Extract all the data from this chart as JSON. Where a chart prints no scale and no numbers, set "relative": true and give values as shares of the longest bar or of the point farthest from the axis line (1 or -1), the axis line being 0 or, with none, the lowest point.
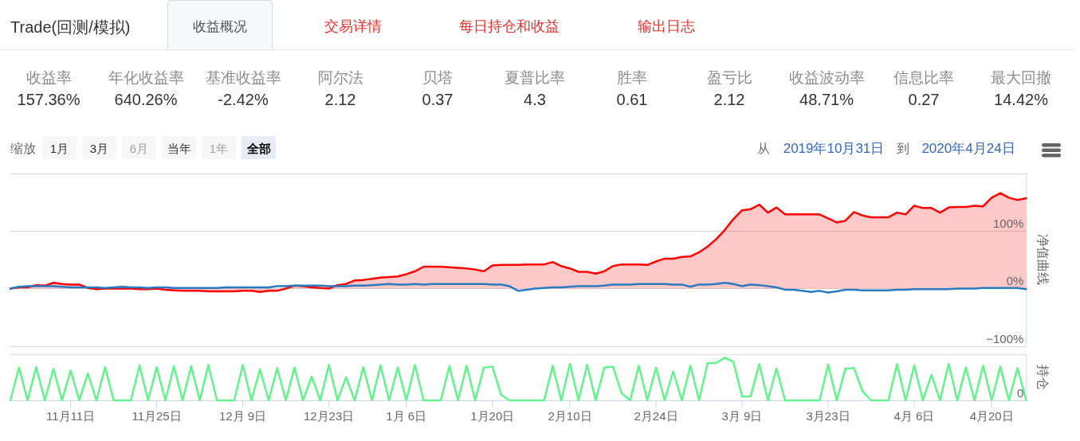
{
  "chart_data": [
    {
      "type": "other",
      "title": "Trade(回测/模拟)",
      "annotations": [
        "收益概况",
        "交易详情",
        "每日持仓和收益",
        "输出日志"
      ]
    },
    {
      "type": "other",
      "categories": [
        "收益率",
        "年化收益率",
        "基准收益率",
        "阿尔法",
        "贝塔",
        "夏普比率",
        "胜率",
        "盈亏比",
        "收益波动率",
        "信息比率",
        "最大回撤"
      ],
      "value_labels": [
        "157.36%",
        "640.26%",
        "-2.42%",
        "2.12",
        "0.37",
        "4.3",
        "0.61",
        "2.12",
        "48.71%",
        "0.27",
        "14.42%"
      ]
    },
    {
      "type": "other",
      "annotations": [
        "缩放",
        "1月",
        "3月",
        "6月",
        "当年",
        "1年",
        "全部",
        "从",
        "2019年10月31日",
        "到",
        "2020年4月24日"
      ]
    },
    {
      "type": "area",
      "categories": [
        null,
        null,
        null,
        null,
        null,
        null,
        null,
        null,
        null,
        null,
        null,
        null,
        null,
        null,
        null,
        null,
        null,
        null,
        null,
        null,
        null,
        null,
        null,
        null,
        null,
        null,
        null,
        null,
        null,
        null,
        null,
        null,
        null,
        null,
        null,
        null,
        null,
        null,
        null,
        null,
        null,
        null,
        null,
        null,
        null,
        null,
        null,
        null,
        null,
        null,
        null,
        null,
        null,
        null,
        null,
        null,
        null,
        null,
        null,
        null,
        null,
        null,
        null,
        null,
        null,
        null,
        null,
        null,
        null,
        null,
        null,
        null,
        null,
        null,
        null,
        null,
        null,
        null,
        null,
        null,
        null,
        null,
        null,
        null,
        null,
        null,
        null,
        null,
        null,
        null,
        null,
        null,
        null,
        null,
        null,
        null,
        null,
        null,
        null,
        null,
        null,
        null,
        null,
        null,
        null,
        null,
        null,
        null,
        null,
        null,
        null,
        null,
        null,
        null,
        null,
        null,
        null,
        null,
        null
      ],
      "series": [
        {
          "color": "#ff0000",
          "values": [
            0,
            2,
            2,
            6,
            5,
            10,
            8,
            7,
            7,
            1,
            -1,
            0,
            0,
            0,
            0,
            -1,
            -1,
            0,
            -2,
            -3,
            -4,
            -4,
            -4,
            -5,
            -5,
            -5,
            -5,
            -4,
            -4,
            -6,
            -4,
            -4,
            0,
            5,
            4,
            2,
            1,
            0,
            6,
            8,
            14,
            15,
            17,
            19,
            20,
            21,
            25,
            30,
            38,
            38,
            38,
            37,
            36,
            35,
            33,
            30,
            40,
            41,
            41,
            41,
            42,
            42,
            42,
            46,
            39,
            35,
            29,
            29,
            26,
            30,
            39,
            42,
            42,
            42,
            41,
            47,
            52,
            52,
            55,
            56,
            63,
            73,
            86,
            102,
            121,
            136,
            138,
            146,
            132,
            141,
            129,
            129,
            129,
            129,
            129,
            122,
            115,
            118,
            133,
            127,
            124,
            124,
            124,
            132,
            129,
            144,
            140,
            140,
            132,
            141,
            142,
            142,
            144,
            143,
            158,
            166,
            158,
            154,
            157
          ]
        },
        {
          "type": "line",
          "color": "#2a7ac2",
          "values": [
            0,
            3,
            4,
            4,
            4,
            4,
            3,
            2,
            2,
            2,
            2,
            1,
            2,
            3,
            2,
            2,
            1,
            2,
            2,
            1,
            1,
            1,
            1,
            1,
            1,
            2,
            2,
            2,
            2,
            2,
            2,
            4,
            4,
            5,
            5,
            5,
            5,
            4,
            4,
            4,
            5,
            5,
            6,
            7,
            8,
            7,
            7,
            8,
            7,
            8,
            8,
            8,
            8,
            8,
            8,
            8,
            7,
            7,
            4,
            -4,
            -2,
            0,
            1,
            2,
            2,
            3,
            4,
            4,
            4,
            5,
            7,
            7,
            7,
            8,
            8,
            8,
            8,
            7,
            7,
            3,
            7,
            7,
            8,
            10,
            8,
            4,
            7,
            6,
            4,
            2,
            -2,
            -2,
            -4,
            -6,
            -4,
            -7,
            -5,
            -2,
            -2,
            -3,
            -3,
            -3,
            -3,
            -2,
            -2,
            -1,
            -1,
            -1,
            -1,
            -1,
            0,
            0,
            0,
            1,
            1,
            1,
            1,
            1,
            -1
          ]
        }
      ],
      "ylim": [
        -100,
        200
      ],
      "yticks": [
        {
          "value": -100,
          "label": "−100%"
        },
        {
          "value": 0,
          "label": "0%"
        },
        {
          "value": 100,
          "label": "100%"
        },
        {
          "value": 200,
          "label": null
        }
      ],
      "grid": "y",
      "tick_labels": "y",
      "ylabel": "净值曲线"
    },
    {
      "type": "line",
      "relative": true,
      "categories": [
        null,
        null,
        null,
        null,
        null,
        null,
        null,
        "11月11日",
        null,
        null,
        null,
        null,
        null,
        null,
        null,
        null,
        null,
        "11月25日",
        null,
        null,
        null,
        null,
        null,
        null,
        null,
        null,
        null,
        "12月 9日",
        null,
        null,
        null,
        null,
        null,
        null,
        null,
        null,
        null,
        "12月23日",
        null,
        null,
        null,
        null,
        null,
        null,
        null,
        null,
        "1月 6日",
        null,
        null,
        null,
        null,
        null,
        null,
        null,
        null,
        null,
        "1月20日",
        null,
        null,
        null,
        null,
        null,
        null,
        null,
        null,
        "2月10日",
        null,
        null,
        null,
        null,
        null,
        null,
        null,
        null,
        null,
        "2月24日",
        null,
        null,
        null,
        null,
        null,
        null,
        null,
        null,
        null,
        "3月 9日",
        null,
        null,
        null,
        null,
        null,
        null,
        null,
        null,
        null,
        "3月23日",
        null,
        null,
        null,
        null,
        null,
        null,
        null,
        null,
        null,
        "4月 6日",
        null,
        null,
        null,
        null,
        null,
        null,
        null,
        null,
        "4月20日",
        null,
        null,
        null,
        null
      ],
      "color": "#63f38d",
      "values": [
        0,
        0.77,
        0,
        0.78,
        0,
        0.74,
        0,
        0.7,
        0,
        0.63,
        0,
        0.78,
        0,
        0,
        0,
        0.82,
        0,
        0.78,
        0,
        0.8,
        0,
        0.8,
        0,
        0.83,
        0,
        0,
        0,
        0.83,
        0,
        0.73,
        0,
        0.76,
        0,
        0.77,
        0,
        0.56,
        0,
        0.83,
        0,
        0.54,
        0,
        0.78,
        0,
        0.82,
        0,
        0.77,
        0,
        0.83,
        0,
        0,
        0,
        0.8,
        0,
        0.81,
        0,
        0.77,
        0.79,
        0.13,
        0,
        0,
        0,
        0,
        0,
        0.81,
        0,
        0.86,
        0,
        0.84,
        0,
        0.77,
        0.79,
        0.17,
        0,
        0.81,
        0,
        0.77,
        0,
        0.68,
        0,
        0.81,
        0,
        0.87,
        0.88,
        1,
        0.9,
        0.09,
        0.1,
        0.85,
        0,
        0.75,
        0,
        0,
        0,
        0,
        0,
        0.84,
        0,
        0.74,
        0.76,
        0.21,
        0,
        0,
        0,
        0.85,
        0,
        0.82,
        0,
        0.6,
        0,
        0.86,
        0,
        0.77,
        0,
        0.81,
        0,
        0.79,
        0,
        0.76,
        0
      ],
      "tick_labels": "x",
      "ylabel": "持仓",
      "annotations": [
        "0"
      ]
    }
  ]
}
